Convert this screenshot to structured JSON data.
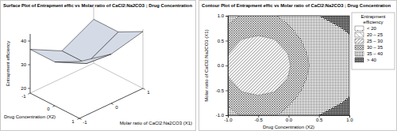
{
  "chart_data": [
    {
      "type": "surface",
      "title": "Surface Plot of Entrapment effic vs Molar ratio of CaCl2:Na2CO3 ; Drug Concentration",
      "xlabel": "Drug Concentration (X2)",
      "ylabel": "Molar ratio of CaCl2:Na2CO3 (X1)",
      "zlabel": "Entrapment efficiency",
      "x": [
        -1,
        0,
        1
      ],
      "y": [
        -1,
        0,
        1
      ],
      "z": [
        [
          36.5,
          36.5,
          42
        ],
        [
          29.5,
          29.5,
          38.8
        ],
        [
          36.5,
          36.5,
          42
        ]
      ],
      "xlim": [
        -1,
        1
      ],
      "ylim": [
        -1,
        1
      ],
      "zlim": [
        18,
        43
      ],
      "xticks": [
        -1,
        0,
        1
      ],
      "yticks": [
        -1,
        0,
        1
      ],
      "zticks": [
        20,
        30,
        40
      ],
      "color": "#d5dbe6"
    },
    {
      "type": "contour",
      "title": "Contour Plot of Entrapment effic vs Molar ratio of CaCl2:Na2CO3 ; Drug Concentration",
      "xlabel": "Drug Concentration (X2)",
      "ylabel": "Molar ratio of CaCl2:Na2CO3 (X1)",
      "legend_title": "Entrapment efficiency",
      "legend": "right",
      "levels": [
        20,
        25,
        30,
        35,
        40
      ],
      "level_labels": [
        "< 20",
        "20 – 25",
        "25 – 30",
        "30 – 35",
        "35 – 40",
        "> 40"
      ],
      "x": [
        -1,
        -0.75,
        -0.5,
        -0.25,
        0,
        0.25,
        0.5,
        0.75,
        1
      ],
      "y": [
        -1,
        -0.75,
        -0.5,
        -0.25,
        0,
        0.25,
        0.5,
        0.75,
        1
      ],
      "z": [
        [
          36.5,
          34.5,
          34,
          34.5,
          36.5,
          38.5,
          40,
          41,
          42
        ],
        [
          34.5,
          32.5,
          31.8,
          32.5,
          34.5,
          37,
          38.5,
          39.5,
          40.5
        ],
        [
          32,
          29.6,
          28.8,
          29.6,
          32,
          35.5,
          37.5,
          38.5,
          39.5
        ],
        [
          30.2,
          27.6,
          26.7,
          27.6,
          30.2,
          34.5,
          37,
          38,
          39
        ],
        [
          29.5,
          26.9,
          26,
          26.9,
          29.5,
          34,
          36.8,
          37.8,
          38.8
        ],
        [
          30.2,
          27.6,
          26.7,
          27.6,
          30.2,
          34.5,
          37,
          38,
          39
        ],
        [
          32,
          29.6,
          28.8,
          29.6,
          32,
          35.5,
          37.5,
          38.5,
          39.5
        ],
        [
          34.5,
          32.5,
          31.8,
          32.5,
          34.5,
          37,
          38.5,
          39.5,
          40.5
        ],
        [
          36.5,
          34.5,
          34,
          34.5,
          36.5,
          38.5,
          40,
          41,
          42
        ]
      ],
      "xlim": [
        -1,
        1
      ],
      "ylim": [
        -1,
        1
      ],
      "xticks": [
        {
          "value": -1,
          "label": "-1.0"
        },
        {
          "value": -0.5,
          "label": "-0.5"
        },
        {
          "value": 0,
          "label": "0.0"
        },
        {
          "value": 0.5,
          "label": "0.5"
        },
        {
          "value": 1,
          "label": "1.0"
        }
      ],
      "yticks": [
        {
          "value": -1,
          "label": "-1.0"
        },
        {
          "value": -0.5,
          "label": "-0.5"
        },
        {
          "value": 0,
          "label": "0.0"
        },
        {
          "value": 0.5,
          "label": "0.5"
        },
        {
          "value": 1,
          "label": "1.0"
        }
      ]
    }
  ]
}
